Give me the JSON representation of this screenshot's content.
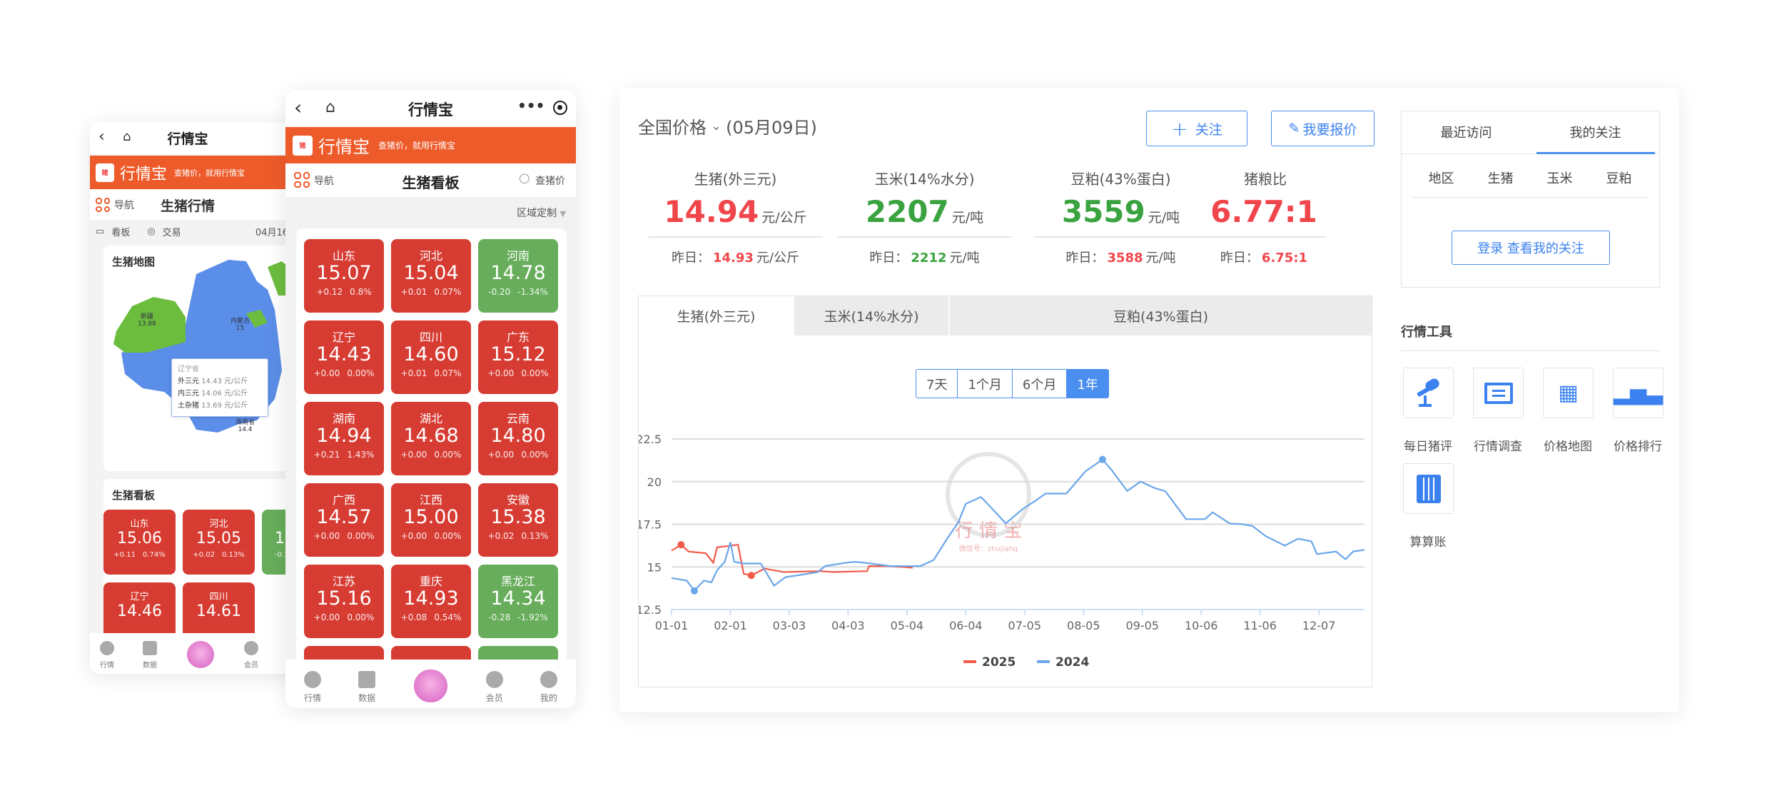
{
  "phone1": {
    "title": "行情宝",
    "brand": "行情宝",
    "slogan": "查猪价，就用行情宝",
    "nav_label": "导航",
    "page_title": "生猪行情",
    "tabs": [
      "看板",
      "交易"
    ],
    "date": "04月16",
    "map_card_title": "生猪地图",
    "map_labels": [
      {
        "name": "新疆",
        "value": "13.88"
      },
      {
        "name": "内蒙古",
        "value": "15"
      },
      {
        "name": "海南省",
        "value": "14.4"
      }
    ],
    "tooltip": {
      "title": "辽宁省",
      "rows": [
        {
          "k": "外三元",
          "v": "14.43 元/公斤"
        },
        {
          "k": "内三元",
          "v": "14.06 元/公斤"
        },
        {
          "k": "土杂猪",
          "v": "13.69 元/公斤"
        }
      ]
    },
    "board_title": "生猪看板",
    "tiles": [
      {
        "name": "山东",
        "value": "15.06",
        "chg": "+0.11",
        "pct": "0.74%",
        "color": "red"
      },
      {
        "name": "河北",
        "value": "15.05",
        "chg": "+0.02",
        "pct": "0.13%",
        "color": "red"
      },
      {
        "name": "",
        "value": "1",
        "chg": "-0.1",
        "pct": "",
        "color": "green"
      },
      {
        "name": "辽宁",
        "value": "14.46",
        "chg": "",
        "pct": "",
        "color": "red"
      },
      {
        "name": "四川",
        "value": "14.61",
        "chg": "",
        "pct": "",
        "color": "red"
      }
    ],
    "bottom_nav": [
      "行情",
      "数据",
      "",
      "会员"
    ]
  },
  "phone2": {
    "title": "行情宝",
    "brand": "行情宝",
    "slogan": "查猪价，就用行情宝",
    "nav_label": "导航",
    "page_title": "生猪看板",
    "search_label": "查猪价",
    "region_label": "区域定制",
    "tiles": [
      {
        "name": "山东",
        "value": "15.07",
        "chg": "+0.12",
        "pct": "0.8%",
        "color": "red"
      },
      {
        "name": "河北",
        "value": "15.04",
        "chg": "+0.01",
        "pct": "0.07%",
        "color": "red"
      },
      {
        "name": "河南",
        "value": "14.78",
        "chg": "-0.20",
        "pct": "-1.34%",
        "color": "green"
      },
      {
        "name": "辽宁",
        "value": "14.43",
        "chg": "+0.00",
        "pct": "0.00%",
        "color": "red"
      },
      {
        "name": "四川",
        "value": "14.60",
        "chg": "+0.01",
        "pct": "0.07%",
        "color": "red"
      },
      {
        "name": "广东",
        "value": "15.12",
        "chg": "+0.00",
        "pct": "0.00%",
        "color": "red"
      },
      {
        "name": "湖南",
        "value": "14.94",
        "chg": "+0.21",
        "pct": "1.43%",
        "color": "red"
      },
      {
        "name": "湖北",
        "value": "14.68",
        "chg": "+0.00",
        "pct": "0.00%",
        "color": "red"
      },
      {
        "name": "云南",
        "value": "14.80",
        "chg": "+0.00",
        "pct": "0.00%",
        "color": "red"
      },
      {
        "name": "广西",
        "value": "14.57",
        "chg": "+0.00",
        "pct": "0.00%",
        "color": "red"
      },
      {
        "name": "江西",
        "value": "15.00",
        "chg": "+0.00",
        "pct": "0.00%",
        "color": "red"
      },
      {
        "name": "安徽",
        "value": "15.38",
        "chg": "+0.02",
        "pct": "0.13%",
        "color": "red"
      },
      {
        "name": "江苏",
        "value": "15.16",
        "chg": "+0.00",
        "pct": "0.00%",
        "color": "red"
      },
      {
        "name": "重庆",
        "value": "14.93",
        "chg": "+0.08",
        "pct": "0.54%",
        "color": "red"
      },
      {
        "name": "黑龙江",
        "value": "14.34",
        "chg": "-0.28",
        "pct": "-1.92%",
        "color": "green"
      },
      {
        "name": "",
        "value": "",
        "chg": "",
        "pct": "",
        "color": "red"
      },
      {
        "name": "",
        "value": "",
        "chg": "",
        "pct": "",
        "color": "red"
      },
      {
        "name": "",
        "value": "",
        "chg": "",
        "pct": "",
        "color": "green"
      }
    ],
    "bottom_nav": [
      "行情",
      "数据",
      "",
      "会员",
      "我的"
    ]
  },
  "desktop": {
    "title": "全国价格",
    "date": "(05月09日)",
    "follow_label": "关注",
    "quote_label": "我要报价",
    "stats": [
      {
        "label": "生猪(外三元)",
        "value": "14.94",
        "unit": "元/公斤",
        "color": "red",
        "y_label": "昨日：",
        "y_value": "14.93",
        "y_unit": "元/公斤",
        "y_color": "red"
      },
      {
        "label": "玉米(14%水分)",
        "value": "2207",
        "unit": "元/吨",
        "color": "green",
        "y_label": "昨日：",
        "y_value": "2212",
        "y_unit": "元/吨",
        "y_color": "green"
      },
      {
        "label": "豆粕(43%蛋白)",
        "value": "3559",
        "unit": "元/吨",
        "color": "green",
        "y_label": "昨日：",
        "y_value": "3588",
        "y_unit": "元/吨",
        "y_color": "red"
      },
      {
        "label": "猪粮比",
        "value": "6.77:1",
        "unit": "",
        "color": "red",
        "y_label": "昨日：",
        "y_value": "6.75:1",
        "y_unit": "",
        "y_color": "red"
      }
    ],
    "chart_tabs": [
      "生猪(外三元)",
      "玉米(14%水分)",
      "豆粕(43%蛋白)"
    ],
    "active_chart_tab": 0,
    "ranges": [
      "7天",
      "1个月",
      "6个月",
      "1年"
    ],
    "active_range": 3,
    "watermark": {
      "brand": "行 情 宝",
      "wechat": "微信号：zhujiahq"
    },
    "sidebar": {
      "tabs": [
        "最近访问",
        "我的关注"
      ],
      "active_tab": 1,
      "subtabs": [
        "地区",
        "生猪",
        "玉米",
        "豆粕"
      ],
      "login_label": "登录 查看我的关注",
      "tools_title": "行情工具",
      "tools": [
        {
          "label": "每日猪评",
          "icon": "microphone-icon"
        },
        {
          "label": "行情调查",
          "icon": "chat-icon"
        },
        {
          "label": "价格地图",
          "icon": "map-icon"
        },
        {
          "label": "价格排行",
          "icon": "bar-chart-icon"
        },
        {
          "label": "算算账",
          "icon": "calculator-icon"
        }
      ]
    }
  },
  "colors": {
    "orange": "#ee5b2b",
    "red": "#d73c33",
    "green": "#67ad5b",
    "blue": "#4a8ef0",
    "up": "#f0464b",
    "down": "#3aa33f"
  },
  "chart_data": {
    "type": "line",
    "title": "",
    "xlabel": "",
    "ylabel": "",
    "x_unit": "day of year (0 = 01-01)",
    "x_ticks": [
      {
        "day": 0,
        "label": "01-01"
      },
      {
        "day": 31,
        "label": "02-01"
      },
      {
        "day": 62,
        "label": "03-03"
      },
      {
        "day": 93,
        "label": "04-03"
      },
      {
        "day": 124,
        "label": "05-04"
      },
      {
        "day": 155,
        "label": "06-04"
      },
      {
        "day": 186,
        "label": "07-05"
      },
      {
        "day": 217,
        "label": "08-05"
      },
      {
        "day": 248,
        "label": "09-05"
      },
      {
        "day": 279,
        "label": "10-06"
      },
      {
        "day": 310,
        "label": "11-06"
      },
      {
        "day": 341,
        "label": "12-07"
      }
    ],
    "xlim": [
      0,
      365
    ],
    "y_ticks": [
      12.5,
      15,
      17.5,
      20,
      22.5
    ],
    "ylim": [
      12.5,
      22.5
    ],
    "grid": true,
    "legend": "bottom-center",
    "series": [
      {
        "name": "2025",
        "color": "#f25a4a",
        "points": [
          [
            0,
            15.95
          ],
          [
            5,
            16.3
          ],
          [
            9,
            15.9
          ],
          [
            18,
            15.8
          ],
          [
            22,
            15.25
          ],
          [
            24,
            16.15
          ],
          [
            35,
            16.3
          ],
          [
            38,
            14.6
          ],
          [
            42,
            14.5
          ],
          [
            49,
            14.9
          ],
          [
            59,
            14.7
          ],
          [
            79,
            14.75
          ],
          [
            85,
            14.7
          ],
          [
            103,
            14.75
          ],
          [
            104,
            15.05
          ],
          [
            115,
            15.05
          ],
          [
            127,
            14.95
          ]
        ],
        "markers": [
          [
            5,
            16.3
          ],
          [
            42,
            14.5
          ]
        ]
      },
      {
        "name": "2024",
        "color": "#6aa6ea",
        "points": [
          [
            0,
            14.35
          ],
          [
            8,
            14.2
          ],
          [
            12,
            13.6
          ],
          [
            17,
            14.2
          ],
          [
            21,
            14.1
          ],
          [
            24,
            14.8
          ],
          [
            28,
            15.3
          ],
          [
            31,
            16.45
          ],
          [
            33,
            15.3
          ],
          [
            38,
            15.2
          ],
          [
            47,
            15.2
          ],
          [
            54,
            13.9
          ],
          [
            60,
            14.4
          ],
          [
            69,
            14.55
          ],
          [
            77,
            14.7
          ],
          [
            81,
            15.05
          ],
          [
            92,
            15.25
          ],
          [
            97,
            15.3
          ],
          [
            105,
            15.2
          ],
          [
            115,
            15.05
          ],
          [
            131,
            15.05
          ],
          [
            138,
            15.4
          ],
          [
            146,
            16.8
          ],
          [
            151,
            17.6
          ],
          [
            155,
            18.7
          ],
          [
            163,
            19.1
          ],
          [
            169,
            18.4
          ],
          [
            176,
            17.55
          ],
          [
            185,
            18.4
          ],
          [
            192,
            18.9
          ],
          [
            197,
            19.3
          ],
          [
            208,
            19.3
          ],
          [
            218,
            20.6
          ],
          [
            227,
            21.3
          ],
          [
            232,
            20.65
          ],
          [
            240,
            19.45
          ],
          [
            247,
            20.0
          ],
          [
            255,
            19.6
          ],
          [
            260,
            19.45
          ],
          [
            271,
            17.8
          ],
          [
            281,
            17.8
          ],
          [
            285,
            18.2
          ],
          [
            294,
            17.55
          ],
          [
            301,
            17.5
          ],
          [
            306,
            17.4
          ],
          [
            313,
            16.8
          ],
          [
            323,
            16.25
          ],
          [
            330,
            16.65
          ],
          [
            337,
            16.5
          ],
          [
            340,
            15.75
          ],
          [
            350,
            15.9
          ],
          [
            355,
            15.45
          ],
          [
            359,
            15.9
          ],
          [
            365,
            16.0
          ]
        ],
        "markers": [
          [
            12,
            13.6
          ],
          [
            227,
            21.3
          ]
        ]
      }
    ]
  }
}
